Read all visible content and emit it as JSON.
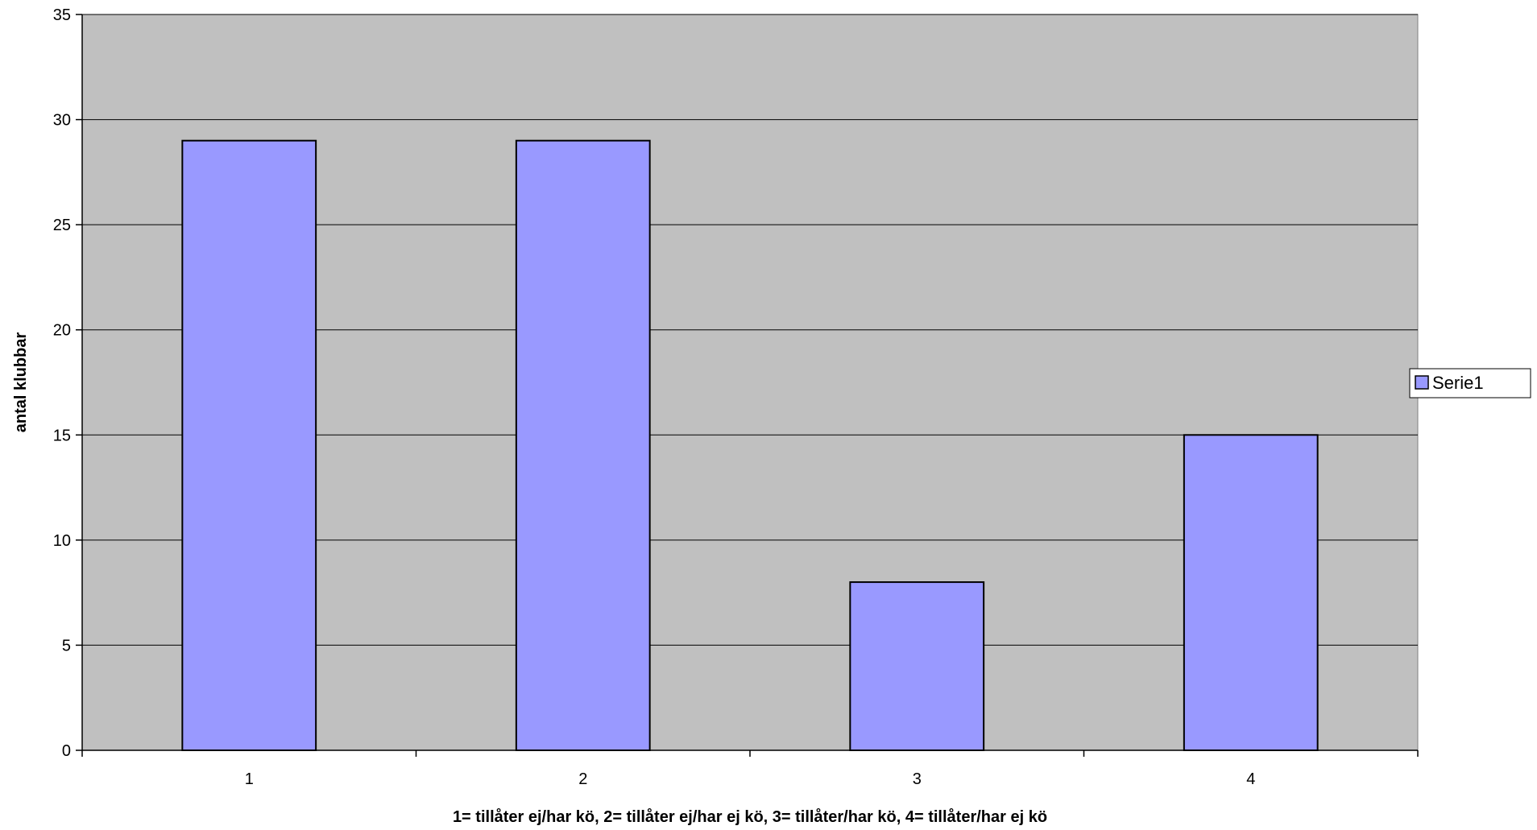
{
  "chart_data": {
    "type": "bar",
    "categories": [
      "1",
      "2",
      "3",
      "4"
    ],
    "series": [
      {
        "name": "Serie1",
        "values": [
          29,
          29,
          8,
          15
        ]
      }
    ],
    "xlabel": "1= tillåter ej/har kö, 2= tillåter ej/har ej kö, 3= tillåter/har kö, 4= tillåter/har ej kö",
    "ylabel": "antal klubbar",
    "ylim": [
      0,
      35
    ],
    "yticks": [
      0,
      5,
      10,
      15,
      20,
      25,
      30,
      35
    ],
    "grid": true,
    "legend_position": "right",
    "colors": {
      "plot_background": "#c0c0c0",
      "bar_fill": "#9999ff",
      "bar_stroke": "#000000",
      "gridline": "#000000"
    }
  }
}
